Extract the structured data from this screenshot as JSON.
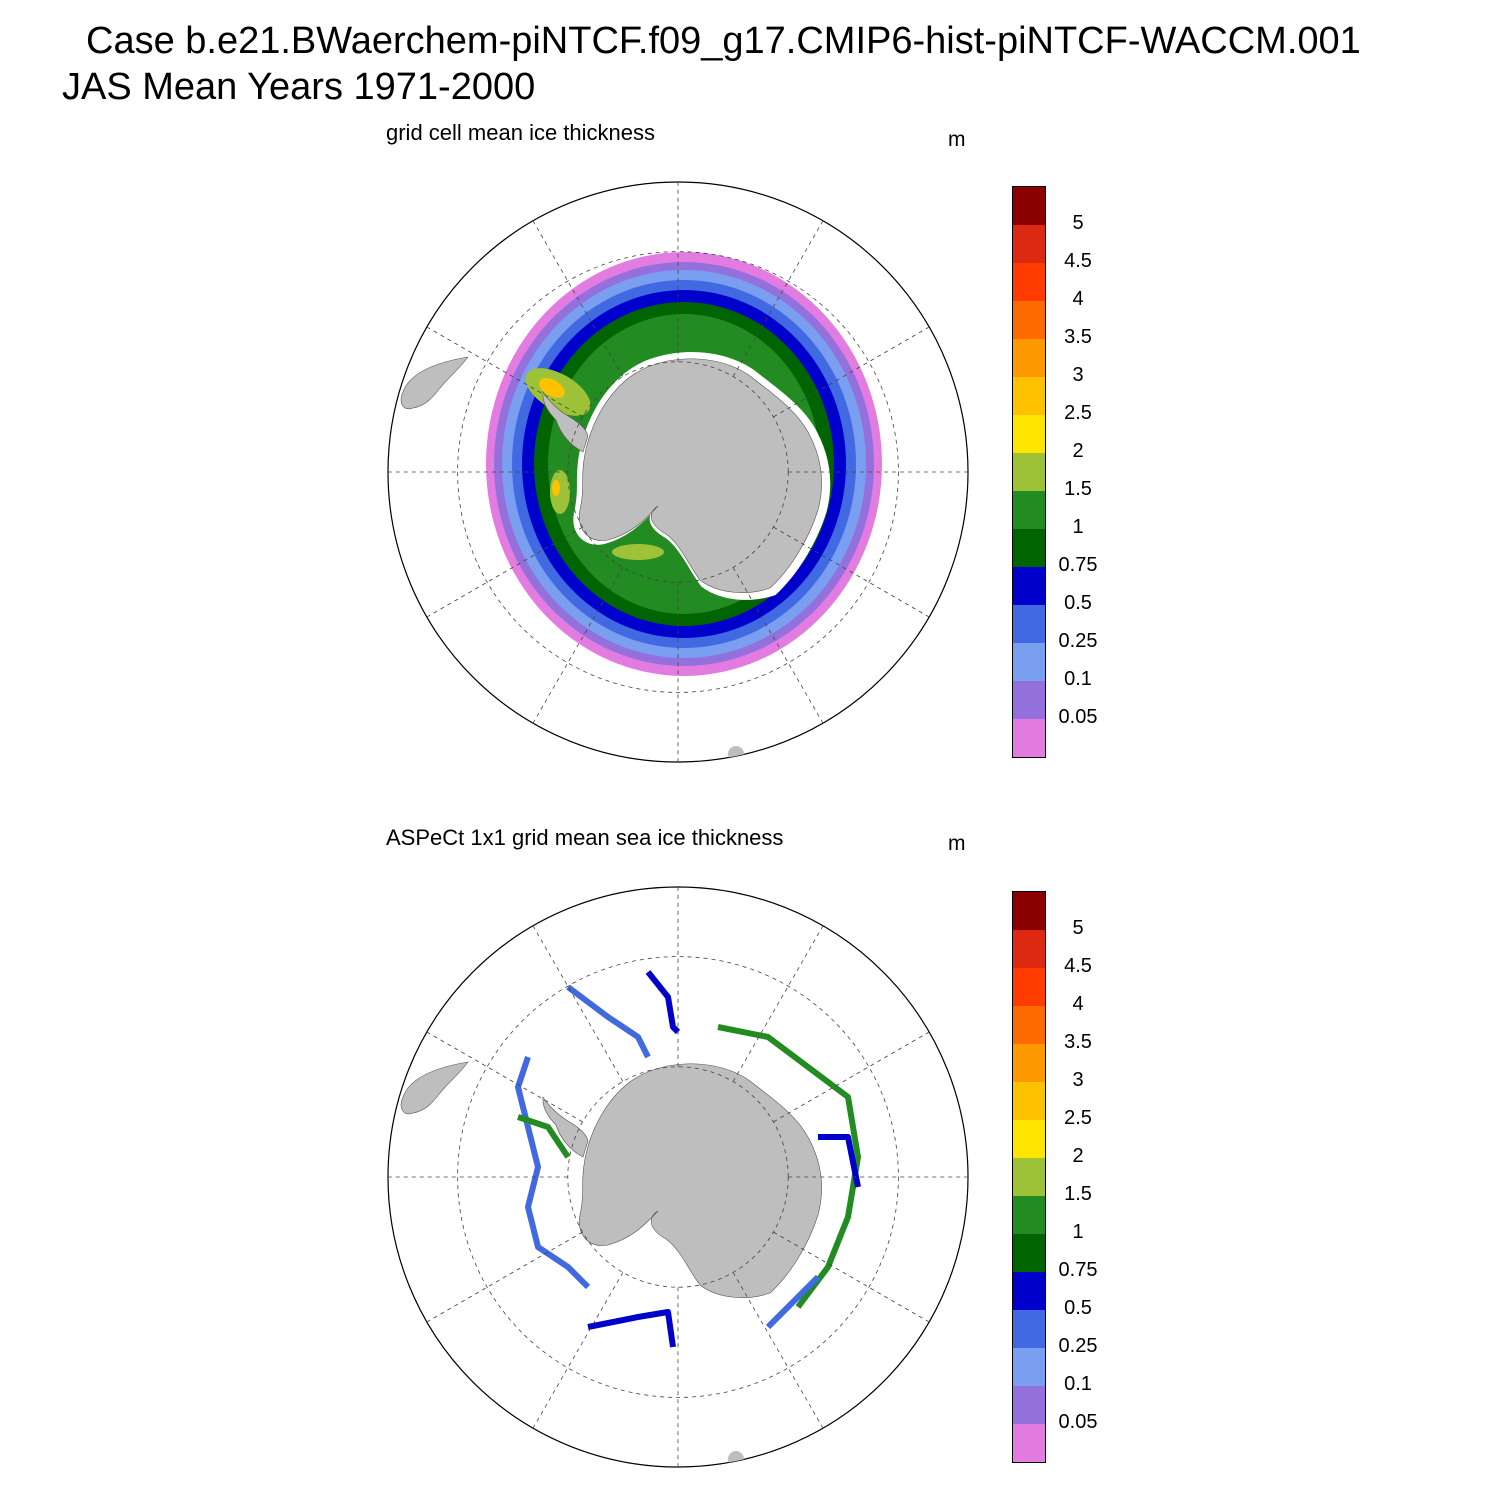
{
  "figure": {
    "case_title": "Case b.e21.BWaerchem-piNTCF.f09_g17.CMIP6-hist-piNTCF-WACCM.001",
    "period_title": "JAS Mean   Years 1971-2000"
  },
  "panels": [
    {
      "title": "grid cell mean ice thickness",
      "units": "m",
      "projection": "south polar stereographic",
      "field": "model sea ice thickness (filled contours)"
    },
    {
      "title": "ASPeCt 1x1 grid mean sea ice thickness",
      "units": "m",
      "projection": "south polar stereographic",
      "field": "ship observation tracks"
    }
  ],
  "colorbar": {
    "labels": [
      "5",
      "4.5",
      "4",
      "3.5",
      "3",
      "2.5",
      "2",
      "1.5",
      "1",
      "0.75",
      "0.5",
      "0.25",
      "0.1",
      "0.05"
    ],
    "colors": [
      "#8b0000",
      "#dc2a12",
      "#ff3b00",
      "#ff6a00",
      "#ff9900",
      "#ffc200",
      "#ffe600",
      "#9ec237",
      "#228b22",
      "#006400",
      "#0000cd",
      "#4169e1",
      "#7a9ef0",
      "#9370db",
      "#e27ce0"
    ]
  },
  "map_style": {
    "land": "#bebebe",
    "ocean": "#ffffff",
    "grid": "#444444"
  }
}
